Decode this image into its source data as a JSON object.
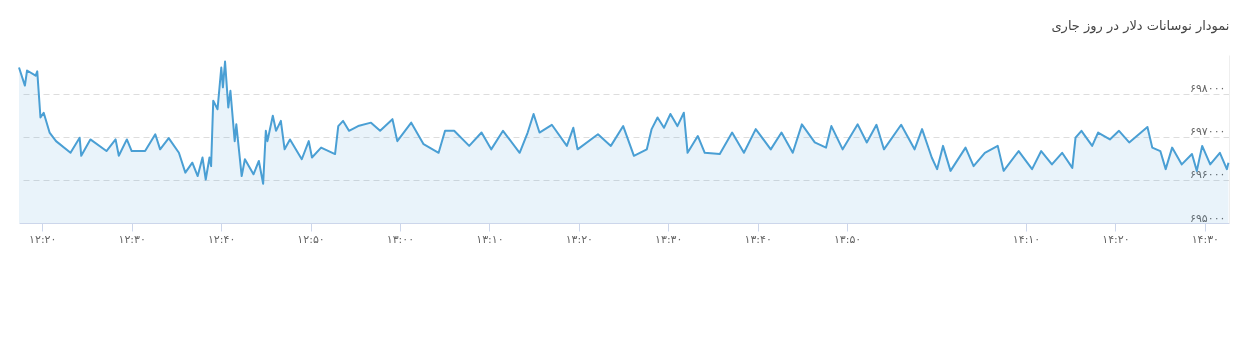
{
  "chart_data": {
    "type": "area",
    "title": "نمودار نوسانات دلار در روز جاری",
    "x": [
      12.29,
      12.301,
      12.305,
      12.321,
      12.324,
      12.33,
      12.336,
      12.347,
      12.359,
      12.386,
      12.403,
      12.406,
      12.423,
      12.453,
      12.47,
      12.476,
      12.491,
      12.5,
      12.525,
      12.544,
      12.553,
      12.569,
      12.588,
      12.6,
      12.613,
      12.623,
      12.632,
      12.638,
      12.645,
      12.648,
      12.652,
      12.66,
      12.667,
      12.67,
      12.674,
      12.68,
      12.684,
      12.692,
      12.695,
      12.705,
      12.711,
      12.727,
      12.737,
      12.745,
      12.75,
      12.753,
      12.763,
      12.769,
      12.778,
      12.785,
      12.795,
      12.817,
      12.83,
      12.836,
      12.853,
      12.879,
      12.885,
      12.894,
      12.905,
      12.922,
      12.946,
      12.963,
      12.986,
      12.995,
      13.021,
      13.044,
      13.072,
      13.084,
      13.101,
      13.129,
      13.152,
      13.17,
      13.192,
      13.223,
      13.238,
      13.249,
      13.26,
      13.283,
      13.311,
      13.323,
      13.331,
      13.369,
      13.393,
      13.416,
      13.436,
      13.46,
      13.469,
      13.48,
      13.492,
      13.504,
      13.517,
      13.529,
      13.536,
      13.555,
      13.568,
      13.596,
      13.619,
      13.641,
      13.663,
      13.691,
      13.711,
      13.732,
      13.749,
      13.773,
      13.794,
      13.804,
      13.825,
      13.853,
      13.87,
      13.888,
      13.902,
      13.934,
      13.959,
      13.973,
      13.991,
      14.001,
      14.012,
      14.026,
      14.054,
      14.069,
      14.09,
      14.114,
      14.125,
      14.153,
      14.178,
      14.195,
      14.215,
      14.234,
      14.253,
      14.259,
      14.27,
      14.29,
      14.301,
      14.323,
      14.34,
      14.359,
      14.393,
      14.402,
      14.417,
      14.427,
      14.439,
      14.457,
      14.476,
      14.485,
      14.495,
      14.51,
      14.528,
      14.541,
      14.544
    ],
    "series": [
      {
        "color": "#4a9fd4",
        "values": [
          698610,
          698190,
          698540,
          698420,
          698520,
          697450,
          697560,
          697100,
          696900,
          696630,
          696980,
          696560,
          696940,
          696670,
          696940,
          696560,
          696940,
          696670,
          696670,
          697060,
          696710,
          696970,
          696630,
          696170,
          696400,
          696090,
          696520,
          696010,
          696520,
          696320,
          697840,
          697640,
          698610,
          698150,
          698750,
          697680,
          698070,
          696900,
          697290,
          696090,
          696480,
          696130,
          696440,
          695910,
          697140,
          696900,
          697490,
          697140,
          697370,
          696710,
          696940,
          696480,
          696900,
          696520,
          696750,
          696600,
          697250,
          697370,
          697140,
          697250,
          697330,
          697140,
          697410,
          696900,
          697330,
          696830,
          696630,
          697140,
          697140,
          696790,
          697100,
          696710,
          697140,
          696630,
          697100,
          697530,
          697100,
          697280,
          696790,
          697210,
          696710,
          697060,
          696790,
          697250,
          696560,
          696710,
          697180,
          697450,
          697210,
          697530,
          697250,
          697560,
          696630,
          697020,
          696630,
          696600,
          697100,
          696630,
          697180,
          696710,
          697100,
          696630,
          697290,
          696870,
          696750,
          697250,
          696710,
          697290,
          696870,
          697280,
          696710,
          697280,
          696710,
          697180,
          696520,
          696250,
          696790,
          696210,
          696750,
          696320,
          696630,
          696790,
          696210,
          696670,
          696250,
          696670,
          696360,
          696630,
          696280,
          696980,
          697140,
          696790,
          697100,
          696940,
          697140,
          696870,
          697230,
          696750,
          696670,
          696250,
          696750,
          696360,
          696600,
          696210,
          696790,
          696360,
          696630,
          696250,
          696400
        ]
      }
    ],
    "xlim": [
      12.29,
      14.545
    ],
    "xticks": [
      {
        "value": 12.3333,
        "label": "۱۲:۲۰"
      },
      {
        "value": 12.5,
        "label": "۱۲:۳۰"
      },
      {
        "value": 12.6667,
        "label": "۱۲:۴۰"
      },
      {
        "value": 12.8333,
        "label": "۱۲:۵۰"
      },
      {
        "value": 13.0,
        "label": "۱۳:۰۰"
      },
      {
        "value": 13.1667,
        "label": "۱۳:۱۰"
      },
      {
        "value": 13.3333,
        "label": "۱۳:۲۰"
      },
      {
        "value": 13.5,
        "label": "۱۳:۳۰"
      },
      {
        "value": 13.6667,
        "label": "۱۳:۴۰"
      },
      {
        "value": 13.8333,
        "label": "۱۳:۵۰"
      },
      {
        "value": 14.1667,
        "label": "۱۴:۱۰"
      },
      {
        "value": 14.3333,
        "label": "۱۴:۲۰"
      },
      {
        "value": 14.5,
        "label": "۱۴:۳۰"
      }
    ],
    "ylim": [
      695000,
      698900
    ],
    "yticks": [
      {
        "value": 695000,
        "label": "۶۹۵۰۰۰"
      },
      {
        "value": 696000,
        "label": "۶۹۶۰۰۰"
      },
      {
        "value": 697000,
        "label": "۶۹۷۰۰۰"
      },
      {
        "value": 698000,
        "label": "۶۹۸۰۰۰"
      }
    ],
    "grid": "y",
    "marker": "none",
    "line_style": "solid"
  }
}
